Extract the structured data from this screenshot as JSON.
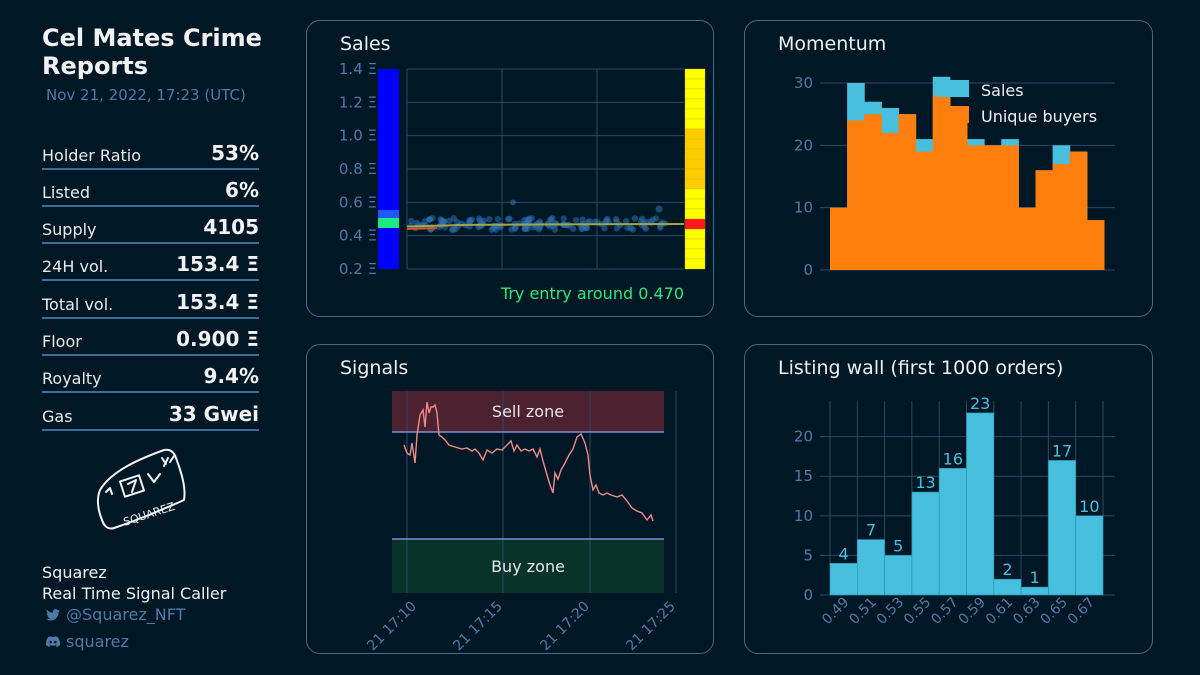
{
  "header": {
    "title": "Cel Mates Crime Reports",
    "timestamp": "Nov 21, 2022, 17:23 (UTC)"
  },
  "stats": [
    {
      "label": "Holder Ratio",
      "value": "53%"
    },
    {
      "label": "Listed",
      "value": "6%"
    },
    {
      "label": "Supply",
      "value": "4105"
    },
    {
      "label": "24H vol.",
      "value": "153.4 Ξ"
    },
    {
      "label": "Total vol.",
      "value": "153.4 Ξ"
    },
    {
      "label": "Floor",
      "value": "0.900 Ξ"
    },
    {
      "label": "Royalty",
      "value": "9.4%"
    },
    {
      "label": "Gas",
      "value": "33 Gwei"
    }
  ],
  "footer": {
    "logo_text": "SQUAREZ",
    "brand": "Squarez",
    "tagline": "Real Time Signal Caller",
    "twitter": "@Squarez_NFT",
    "discord": "squarez"
  },
  "colors": {
    "background": "#001726",
    "accent": "#48bfdd",
    "orange": "#ff7f0e",
    "entry_text": "#2ee87a",
    "muted": "#4f7aa8"
  },
  "chart_data": [
    {
      "type": "scatter",
      "title": "Sales",
      "yticks": [
        "1.4 Ξ",
        "1.2 Ξ",
        "1.0 Ξ",
        "0.8 Ξ",
        "0.6 Ξ",
        "0.4 Ξ",
        "0.2 Ξ"
      ],
      "ylim": [
        0.2,
        1.4
      ],
      "grid": true,
      "annotation": "Try entry around 0.470",
      "sales_price_level": 0.47,
      "entry_marker": 0.47,
      "exit_marker": 0.47
    },
    {
      "type": "bar",
      "title": "Momentum",
      "ylim": [
        0,
        30
      ],
      "yticks": [
        0,
        10,
        20,
        30
      ],
      "series": [
        {
          "name": "Sales",
          "values": [
            10,
            30,
            27,
            26,
            25,
            21,
            31,
            26,
            21,
            20,
            21,
            10,
            16,
            20,
            19,
            8
          ]
        },
        {
          "name": "Unique buyers",
          "values": [
            10,
            24,
            25,
            22,
            25,
            19,
            28,
            26,
            20,
            20,
            20,
            10,
            16,
            17,
            19,
            8
          ]
        }
      ],
      "legend": "top-right"
    },
    {
      "type": "line",
      "title": "Signals",
      "zones": [
        "Sell zone",
        "Buy zone"
      ],
      "xticks": [
        "21 17:10",
        "21 17:15",
        "21 17:20",
        "21 17:25"
      ],
      "grid": true
    },
    {
      "type": "bar",
      "title": "Listing wall (first 1000 orders)",
      "categories": [
        "0.49",
        "0.51",
        "0.53",
        "0.55",
        "0.57",
        "0.59",
        "0.61",
        "0.63",
        "0.65",
        "0.67"
      ],
      "values": [
        4,
        7,
        5,
        13,
        16,
        23,
        2,
        1,
        17,
        10
      ],
      "yticks": [
        0,
        5,
        10,
        15,
        20
      ],
      "ylim": [
        0,
        24.5
      ],
      "grid": true
    }
  ]
}
